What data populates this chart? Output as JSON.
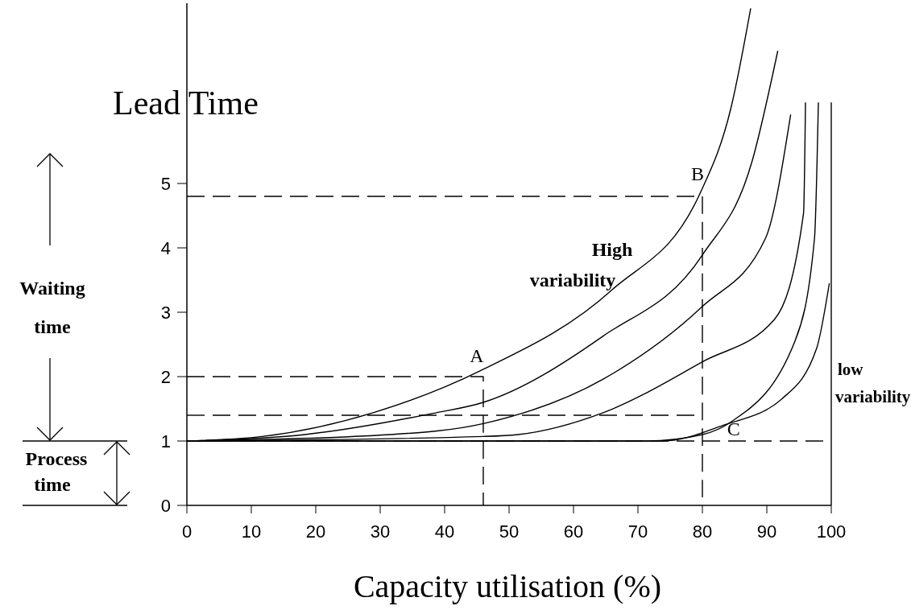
{
  "chart_data": {
    "type": "line",
    "title": "Lead Time",
    "xlabel": "Capacity utilisation (%)",
    "xlim": [
      0,
      100
    ],
    "xticks": [
      0,
      10,
      20,
      30,
      40,
      50,
      60,
      70,
      80,
      90,
      100
    ],
    "ylim": [
      0,
      7.8
    ],
    "yticks": [
      0,
      1,
      2,
      3,
      4,
      5
    ],
    "grid": false,
    "series": [
      {
        "type": "line",
        "color": "#000000",
        "line_style": "solid",
        "x": [
          0,
          11.7,
          28.9,
          45.5,
          66,
          79.7,
          84.5,
          87.5
        ],
        "values": [
          1,
          1.07,
          1.44,
          2.09,
          3.35,
          4.86,
          6.2,
          7.72
        ]
      },
      {
        "type": "line",
        "color": "#000000",
        "line_style": "solid",
        "x": [
          0,
          18.3,
          38.2,
          46,
          64.6,
          80,
          87.7,
          91.7
        ],
        "values": [
          1,
          1.1,
          1.43,
          1.6,
          2.63,
          3.89,
          5.34,
          7.06
        ]
      },
      {
        "type": "line",
        "color": "#000000",
        "line_style": "solid",
        "x": [
          0,
          31.6,
          46,
          64.6,
          80,
          89.8,
          93.7
        ],
        "values": [
          1,
          1.1,
          1.27,
          1.96,
          3.09,
          4.15,
          6.07
        ]
      },
      {
        "type": "line",
        "color": "#000000",
        "line_style": "solid",
        "x": [
          0,
          46,
          51.4,
          64.6,
          80,
          91.2,
          95.7,
          96
        ],
        "values": [
          1,
          1.07,
          1.1,
          1.44,
          2.23,
          2.89,
          4.54,
          6.26
        ]
      },
      {
        "type": "line",
        "color": "#000000",
        "line_style": "solid",
        "x": [
          0,
          71.3,
          80,
          84.5,
          94.4,
          97.4,
          98
        ],
        "values": [
          1,
          1,
          1.1,
          1.3,
          2.56,
          4.15,
          6.26
        ]
      },
      {
        "type": "line",
        "color": "#000000",
        "line_style": "solid",
        "x": [
          0,
          73.9,
          83.1,
          92.4,
          97.7,
          99.7
        ],
        "values": [
          1,
          1,
          1.24,
          1.66,
          2.43,
          3.45
        ]
      },
      {
        "type": "line",
        "color": "#000000",
        "line_style": "solid",
        "x": [
          100,
          100
        ],
        "values": [
          0,
          6.26
        ]
      },
      {
        "type": "line",
        "color": "#000000",
        "line_style": "dashed",
        "x": [
          0,
          80,
          80
        ],
        "values": [
          4.8,
          4.8,
          0
        ]
      },
      {
        "type": "line",
        "color": "#000000",
        "line_style": "dashed",
        "x": [
          0,
          46,
          46
        ],
        "values": [
          2,
          2,
          0
        ]
      },
      {
        "type": "line",
        "color": "#000000",
        "line_style": "dashed",
        "x": [
          0,
          80
        ],
        "values": [
          1.4,
          1.4
        ]
      },
      {
        "type": "line",
        "color": "#000000",
        "line_style": "dashed",
        "x": [
          0,
          100
        ],
        "values": [
          1,
          1
        ]
      }
    ],
    "annotations": [
      {
        "text": "A",
        "x": 46,
        "y": 2.05
      },
      {
        "text": "B",
        "x": 80,
        "y": 4.8
      },
      {
        "text": "C",
        "x": 83.1,
        "y": 1.24
      },
      "High variability",
      "low variability",
      "Waiting time",
      "Process time"
    ]
  }
}
